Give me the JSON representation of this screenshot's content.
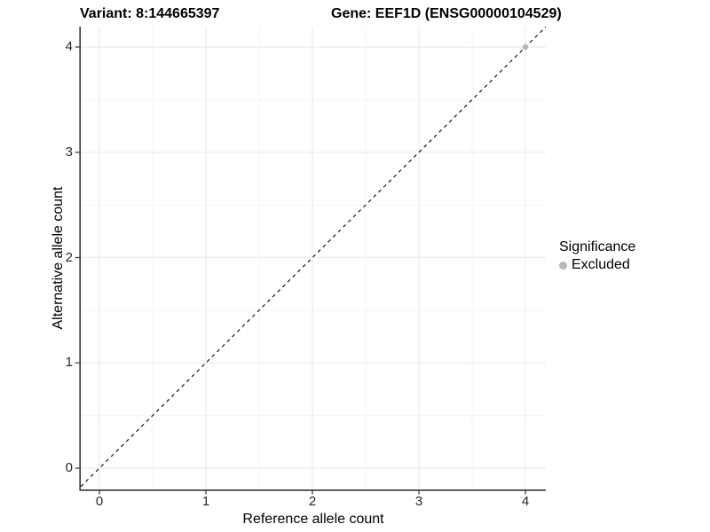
{
  "header": {
    "variant_title": "Variant: 8:144665397",
    "gene_title": "Gene: EEF1D (ENSG00000104529)"
  },
  "axes": {
    "x": {
      "label": "Reference allele count",
      "ticks": [
        "0",
        "1",
        "2",
        "3",
        "4"
      ]
    },
    "y": {
      "label": "Alternative allele count",
      "ticks": [
        "0",
        "1",
        "2",
        "3",
        "4"
      ]
    }
  },
  "legend": {
    "title": "Significance",
    "items": [
      {
        "label": "Excluded",
        "color": "#b8b8b8",
        "marker": "circle-icon"
      }
    ]
  },
  "chart_data": {
    "type": "scatter",
    "title": "Variant: 8:144665397 | Gene: EEF1D (ENSG00000104529)",
    "xlabel": "Reference allele count",
    "ylabel": "Alternative allele count",
    "xlim": [
      -0.2,
      4.2
    ],
    "ylim": [
      -0.2,
      4.2
    ],
    "x_ticks": [
      0,
      1,
      2,
      3,
      4
    ],
    "y_ticks": [
      0,
      1,
      2,
      3,
      4
    ],
    "x_minor_ticks": [
      0.5,
      1.5,
      2.5,
      3.5
    ],
    "y_minor_ticks": [
      0.5,
      1.5,
      2.5,
      3.5
    ],
    "grid": true,
    "legend_position": "right",
    "series": [
      {
        "name": "Excluded",
        "color": "#b8b8b8",
        "points": [
          {
            "x": 4,
            "y": 4
          }
        ]
      }
    ],
    "reference_line": {
      "kind": "identity",
      "equation": "y = x",
      "style": "dashed",
      "color": "#000000"
    }
  },
  "colors": {
    "background": "#ffffff",
    "grid_major": "#ebebeb",
    "grid_minor": "#f5f5f5",
    "axis_line": "#333333",
    "tick_mark": "#333333",
    "tick_label": "#262626",
    "title": "#000000"
  }
}
